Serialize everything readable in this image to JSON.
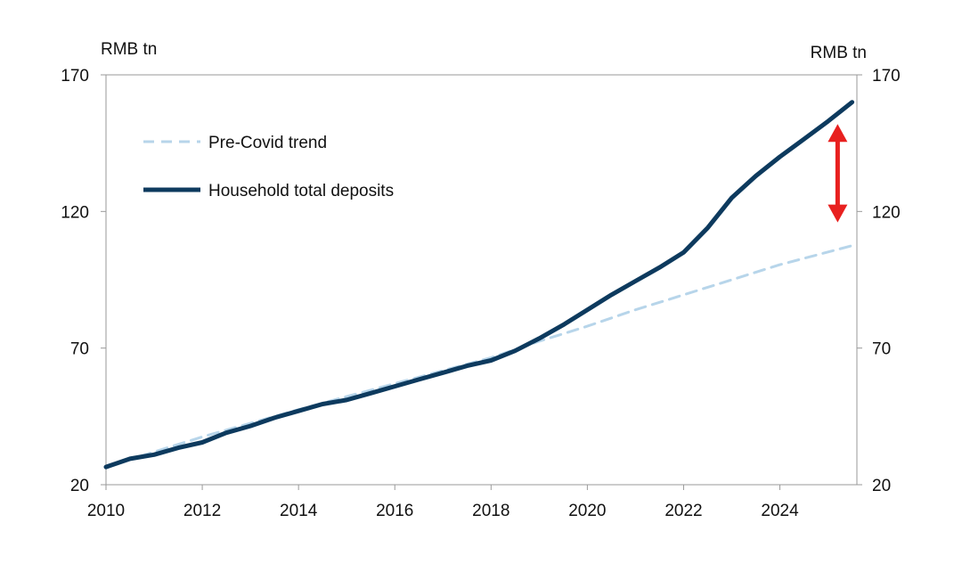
{
  "chart_data": {
    "type": "line",
    "title": "",
    "y_unit_left": "RMB tn",
    "y_unit_right": "RMB tn",
    "xlim": [
      2010,
      2025.6
    ],
    "ylim": [
      20,
      170
    ],
    "x_ticks": [
      2010,
      2012,
      2014,
      2016,
      2018,
      2020,
      2022,
      2024
    ],
    "y_ticks": [
      20,
      70,
      120,
      170
    ],
    "grid": false,
    "legend_position": "top-left",
    "series": [
      {
        "name": "Pre-Covid trend",
        "style": "dashed",
        "color": "#b7d5ea",
        "x": [
          2010.0,
          2012.0,
          2014.0,
          2016.0,
          2018.0,
          2019.0,
          2020.0,
          2021.0,
          2022.0,
          2023.0,
          2024.0,
          2025.5
        ],
        "y": [
          26.5,
          37.5,
          47.5,
          57.0,
          66.5,
          72.5,
          78.0,
          84.0,
          89.5,
          95.0,
          100.5,
          107.5
        ]
      },
      {
        "name": "Household total deposits",
        "style": "solid",
        "color": "#0d3a5e",
        "x": [
          2010.0,
          2010.5,
          2011.0,
          2011.5,
          2012.0,
          2012.5,
          2013.0,
          2013.5,
          2014.0,
          2014.5,
          2015.0,
          2015.5,
          2016.0,
          2016.5,
          2017.0,
          2017.5,
          2018.0,
          2018.5,
          2019.0,
          2019.5,
          2020.0,
          2020.5,
          2021.0,
          2021.5,
          2022.0,
          2022.5,
          2023.0,
          2023.5,
          2024.0,
          2024.5,
          2025.0,
          2025.5
        ],
        "y": [
          26.5,
          29.5,
          31.0,
          33.5,
          35.5,
          39.0,
          41.5,
          44.5,
          47.0,
          49.5,
          51.0,
          53.5,
          56.0,
          58.5,
          61.0,
          63.5,
          65.5,
          69.0,
          73.5,
          78.5,
          84.0,
          89.5,
          94.5,
          99.5,
          105.0,
          114.0,
          125.0,
          133.0,
          140.0,
          146.5,
          153.0,
          160.0
        ]
      }
    ],
    "annotations": [
      {
        "type": "double-arrow",
        "color": "#e8201f",
        "x": 2025.2,
        "y_from": 152,
        "y_to": 116
      }
    ]
  }
}
